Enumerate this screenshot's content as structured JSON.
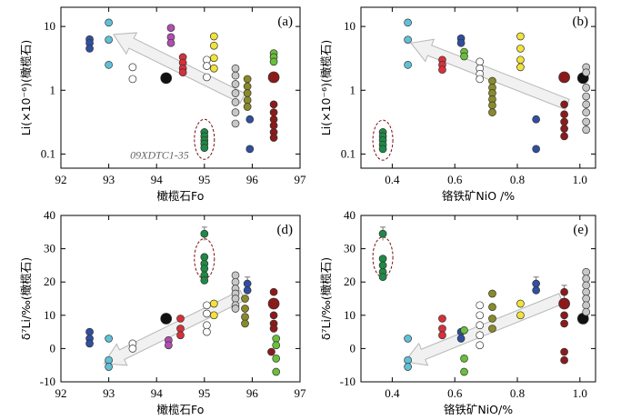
{
  "colors": {
    "navy": "#2f4fa0",
    "cyan": "#5fc0d8",
    "white": "#ffffff",
    "black": "#111111",
    "magenta": "#b04fb0",
    "red": "#d8303a",
    "green": "#1e8a45",
    "yellow": "#f2e23a",
    "gray": "#c8c8c8",
    "olive": "#8a8a2a",
    "darkred": "#8c1a1a",
    "lime": "#6abf3a"
  },
  "chart_data": [
    {
      "panel": "a",
      "type": "scatter",
      "label": "(a)",
      "xlabel": "橄榄石Fo",
      "ylabel": "Li(×10⁻⁶)(橄榄石)",
      "xlim": [
        92,
        97
      ],
      "ylim": [
        0.06,
        20
      ],
      "yscale": "log",
      "xticks": [
        "92",
        "93",
        "94",
        "95",
        "96",
        "97"
      ],
      "yticks": [
        "0.1",
        "1",
        "10"
      ],
      "annotation": "09XDTC1-35",
      "points": [
        {
          "x": 92.6,
          "y": 6.3,
          "c": "navy"
        },
        {
          "x": 92.6,
          "y": 5.5,
          "c": "navy"
        },
        {
          "x": 92.6,
          "y": 4.5,
          "c": "navy"
        },
        {
          "x": 93.0,
          "y": 11.5,
          "c": "cyan"
        },
        {
          "x": 93.0,
          "y": 6.2,
          "c": "cyan"
        },
        {
          "x": 93.0,
          "y": 2.5,
          "c": "cyan"
        },
        {
          "x": 93.5,
          "y": 2.3,
          "c": "white"
        },
        {
          "x": 93.5,
          "y": 1.5,
          "c": "white"
        },
        {
          "x": 94.2,
          "y": 1.55,
          "c": "black",
          "big": true
        },
        {
          "x": 94.3,
          "y": 9.5,
          "c": "magenta"
        },
        {
          "x": 94.3,
          "y": 6.8,
          "c": "magenta"
        },
        {
          "x": 94.3,
          "y": 5.5,
          "c": "magenta"
        },
        {
          "x": 94.55,
          "y": 3.3,
          "c": "red"
        },
        {
          "x": 94.55,
          "y": 2.7,
          "c": "red"
        },
        {
          "x": 94.55,
          "y": 2.2,
          "c": "red"
        },
        {
          "x": 94.55,
          "y": 1.9,
          "c": "red"
        },
        {
          "x": 95.0,
          "y": 0.22,
          "c": "green"
        },
        {
          "x": 95.0,
          "y": 0.19,
          "c": "green"
        },
        {
          "x": 95.0,
          "y": 0.165,
          "c": "green"
        },
        {
          "x": 95.0,
          "y": 0.145,
          "c": "green"
        },
        {
          "x": 95.0,
          "y": 0.125,
          "c": "green"
        },
        {
          "x": 95.05,
          "y": 3.0,
          "c": "white"
        },
        {
          "x": 95.05,
          "y": 2.4,
          "c": "white"
        },
        {
          "x": 95.05,
          "y": 1.6,
          "c": "white"
        },
        {
          "x": 95.2,
          "y": 7.0,
          "c": "yellow"
        },
        {
          "x": 95.2,
          "y": 5.0,
          "c": "yellow"
        },
        {
          "x": 95.2,
          "y": 3.2,
          "c": "yellow"
        },
        {
          "x": 95.2,
          "y": 2.2,
          "c": "yellow"
        },
        {
          "x": 95.65,
          "y": 2.2,
          "c": "gray"
        },
        {
          "x": 95.65,
          "y": 1.7,
          "c": "gray"
        },
        {
          "x": 95.65,
          "y": 1.25,
          "c": "gray"
        },
        {
          "x": 95.65,
          "y": 0.9,
          "c": "gray"
        },
        {
          "x": 95.65,
          "y": 0.65,
          "c": "gray"
        },
        {
          "x": 95.65,
          "y": 0.45,
          "c": "gray"
        },
        {
          "x": 95.65,
          "y": 0.3,
          "c": "gray"
        },
        {
          "x": 95.9,
          "y": 1.5,
          "c": "olive"
        },
        {
          "x": 95.9,
          "y": 1.15,
          "c": "olive"
        },
        {
          "x": 95.9,
          "y": 0.9,
          "c": "olive"
        },
        {
          "x": 95.9,
          "y": 0.7,
          "c": "olive"
        },
        {
          "x": 95.9,
          "y": 0.55,
          "c": "olive"
        },
        {
          "x": 95.95,
          "y": 0.35,
          "c": "navy"
        },
        {
          "x": 95.95,
          "y": 0.12,
          "c": "navy"
        },
        {
          "x": 96.45,
          "y": 3.8,
          "c": "lime"
        },
        {
          "x": 96.45,
          "y": 3.3,
          "c": "lime"
        },
        {
          "x": 96.45,
          "y": 2.8,
          "c": "lime"
        },
        {
          "x": 96.45,
          "y": 1.6,
          "c": "darkred",
          "big": true
        },
        {
          "x": 96.45,
          "y": 0.6,
          "c": "darkred"
        },
        {
          "x": 96.45,
          "y": 0.45,
          "c": "darkred"
        },
        {
          "x": 96.45,
          "y": 0.35,
          "c": "darkred"
        },
        {
          "x": 96.45,
          "y": 0.28,
          "c": "darkred"
        },
        {
          "x": 96.45,
          "y": 0.22,
          "c": "darkred"
        },
        {
          "x": 96.45,
          "y": 0.18,
          "c": "darkred"
        }
      ],
      "ellipse": {
        "x": 95.0,
        "y": 0.17
      },
      "arrow": {
        "from": [
          95.8,
          0.75
        ],
        "to": [
          93.1,
          7.5
        ]
      }
    },
    {
      "panel": "b",
      "type": "scatter",
      "label": "(b)",
      "xlabel": "铬铁矿NiO /%",
      "ylabel": "Li(×10⁻⁶)(橄榄石)",
      "xlim": [
        0.3,
        1.05
      ],
      "ylim": [
        0.06,
        20
      ],
      "yscale": "log",
      "xticks": [
        "0.4",
        "0.6",
        "0.8",
        "1.0"
      ],
      "yticks": [
        "0.1",
        "1",
        "10"
      ],
      "points": [
        {
          "x": 0.37,
          "y": 0.22,
          "c": "green"
        },
        {
          "x": 0.37,
          "y": 0.19,
          "c": "green"
        },
        {
          "x": 0.37,
          "y": 0.165,
          "c": "green"
        },
        {
          "x": 0.37,
          "y": 0.14,
          "c": "green"
        },
        {
          "x": 0.37,
          "y": 0.12,
          "c": "green"
        },
        {
          "x": 0.45,
          "y": 11.5,
          "c": "cyan"
        },
        {
          "x": 0.45,
          "y": 6.2,
          "c": "cyan"
        },
        {
          "x": 0.45,
          "y": 2.5,
          "c": "cyan"
        },
        {
          "x": 0.56,
          "y": 3.0,
          "c": "red"
        },
        {
          "x": 0.56,
          "y": 2.5,
          "c": "red"
        },
        {
          "x": 0.56,
          "y": 2.1,
          "c": "red"
        },
        {
          "x": 0.62,
          "y": 6.5,
          "c": "navy"
        },
        {
          "x": 0.62,
          "y": 5.5,
          "c": "navy"
        },
        {
          "x": 0.63,
          "y": 4.0,
          "c": "lime"
        },
        {
          "x": 0.63,
          "y": 3.4,
          "c": "lime"
        },
        {
          "x": 0.68,
          "y": 2.8,
          "c": "white"
        },
        {
          "x": 0.68,
          "y": 2.2,
          "c": "white"
        },
        {
          "x": 0.68,
          "y": 1.8,
          "c": "white"
        },
        {
          "x": 0.68,
          "y": 1.5,
          "c": "white"
        },
        {
          "x": 0.72,
          "y": 1.4,
          "c": "olive"
        },
        {
          "x": 0.72,
          "y": 1.1,
          "c": "olive"
        },
        {
          "x": 0.72,
          "y": 0.9,
          "c": "olive"
        },
        {
          "x": 0.72,
          "y": 0.72,
          "c": "olive"
        },
        {
          "x": 0.72,
          "y": 0.58,
          "c": "olive"
        },
        {
          "x": 0.72,
          "y": 0.45,
          "c": "olive"
        },
        {
          "x": 0.81,
          "y": 7.0,
          "c": "yellow"
        },
        {
          "x": 0.81,
          "y": 4.5,
          "c": "yellow"
        },
        {
          "x": 0.81,
          "y": 3.0,
          "c": "yellow"
        },
        {
          "x": 0.81,
          "y": 2.3,
          "c": "yellow"
        },
        {
          "x": 0.86,
          "y": 0.35,
          "c": "navy"
        },
        {
          "x": 0.86,
          "y": 0.12,
          "c": "navy"
        },
        {
          "x": 0.95,
          "y": 1.6,
          "c": "darkred",
          "big": true
        },
        {
          "x": 0.95,
          "y": 0.6,
          "c": "darkred"
        },
        {
          "x": 0.95,
          "y": 0.42,
          "c": "darkred"
        },
        {
          "x": 0.95,
          "y": 0.32,
          "c": "darkred"
        },
        {
          "x": 0.95,
          "y": 0.25,
          "c": "darkred"
        },
        {
          "x": 0.95,
          "y": 0.19,
          "c": "darkred"
        },
        {
          "x": 1.01,
          "y": 1.55,
          "c": "black",
          "big": true
        },
        {
          "x": 1.02,
          "y": 2.3,
          "c": "gray"
        },
        {
          "x": 1.02,
          "y": 1.9,
          "c": "gray"
        },
        {
          "x": 1.02,
          "y": 1.1,
          "c": "gray"
        },
        {
          "x": 1.02,
          "y": 0.8,
          "c": "gray"
        },
        {
          "x": 1.02,
          "y": 0.6,
          "c": "gray"
        },
        {
          "x": 1.02,
          "y": 0.45,
          "c": "gray"
        },
        {
          "x": 1.02,
          "y": 0.32,
          "c": "gray"
        },
        {
          "x": 1.02,
          "y": 0.24,
          "c": "gray"
        }
      ],
      "ellipse": {
        "x": 0.37,
        "y": 0.165
      },
      "arrow": {
        "from": [
          0.96,
          0.6
        ],
        "to": [
          0.46,
          5.5
        ]
      }
    },
    {
      "panel": "d",
      "type": "scatter",
      "label": "(d)",
      "xlabel": "橄榄石Fo",
      "ylabel": "δ⁷Li/‰(橄榄石)",
      "xlim": [
        92,
        97
      ],
      "ylim": [
        -10,
        40
      ],
      "yscale": "linear",
      "xticks": [
        "92",
        "93",
        "94",
        "95",
        "96",
        "97"
      ],
      "yticks": [
        "-10",
        "0",
        "10",
        "20",
        "30",
        "40"
      ],
      "points": [
        {
          "x": 92.6,
          "y": 5.0,
          "c": "navy"
        },
        {
          "x": 92.6,
          "y": 3.0,
          "c": "navy"
        },
        {
          "x": 92.6,
          "y": 1.5,
          "c": "navy"
        },
        {
          "x": 93.0,
          "y": 3.0,
          "c": "cyan"
        },
        {
          "x": 93.0,
          "y": -3.5,
          "c": "cyan"
        },
        {
          "x": 93.0,
          "y": -5.5,
          "c": "cyan"
        },
        {
          "x": 93.5,
          "y": 1.5,
          "c": "white"
        },
        {
          "x": 93.5,
          "y": 0.0,
          "c": "white"
        },
        {
          "x": 94.2,
          "y": 9.0,
          "c": "black",
          "big": true
        },
        {
          "x": 94.25,
          "y": 2.5,
          "c": "magenta"
        },
        {
          "x": 94.25,
          "y": 1.0,
          "c": "magenta"
        },
        {
          "x": 94.5,
          "y": 9.0,
          "c": "red"
        },
        {
          "x": 94.5,
          "y": 6.0,
          "c": "red"
        },
        {
          "x": 94.5,
          "y": 4.0,
          "c": "red"
        },
        {
          "x": 95.0,
          "y": 34.5,
          "c": "green",
          "err": 2
        },
        {
          "x": 95.0,
          "y": 27.5,
          "c": "green"
        },
        {
          "x": 95.0,
          "y": 25.5,
          "c": "green"
        },
        {
          "x": 95.0,
          "y": 24.0,
          "c": "green"
        },
        {
          "x": 95.0,
          "y": 22.0,
          "c": "green"
        },
        {
          "x": 95.0,
          "y": 20.5,
          "c": "green"
        },
        {
          "x": 95.05,
          "y": 13.0,
          "c": "white"
        },
        {
          "x": 95.05,
          "y": 10.5,
          "c": "white"
        },
        {
          "x": 95.05,
          "y": 7.0,
          "c": "white"
        },
        {
          "x": 95.05,
          "y": 5.0,
          "c": "white"
        },
        {
          "x": 95.2,
          "y": 13.5,
          "c": "yellow"
        },
        {
          "x": 95.2,
          "y": 10.0,
          "c": "yellow"
        },
        {
          "x": 95.65,
          "y": 22.0,
          "c": "gray"
        },
        {
          "x": 95.65,
          "y": 20.0,
          "c": "gray"
        },
        {
          "x": 95.65,
          "y": 18.0,
          "c": "gray"
        },
        {
          "x": 95.65,
          "y": 16.5,
          "c": "gray"
        },
        {
          "x": 95.65,
          "y": 15.0,
          "c": "gray"
        },
        {
          "x": 95.65,
          "y": 13.0,
          "c": "gray"
        },
        {
          "x": 95.65,
          "y": 12.0,
          "c": "gray"
        },
        {
          "x": 95.9,
          "y": 19.5,
          "c": "navy",
          "err": 2
        },
        {
          "x": 95.9,
          "y": 17.5,
          "c": "navy"
        },
        {
          "x": 95.85,
          "y": 15.0,
          "c": "olive"
        },
        {
          "x": 95.85,
          "y": 12.0,
          "c": "olive"
        },
        {
          "x": 95.85,
          "y": 9.5,
          "c": "olive"
        },
        {
          "x": 95.85,
          "y": 7.5,
          "c": "olive"
        },
        {
          "x": 96.45,
          "y": 17.0,
          "c": "darkred"
        },
        {
          "x": 96.45,
          "y": 13.5,
          "c": "darkred",
          "big": true
        },
        {
          "x": 96.45,
          "y": 10.0,
          "c": "darkred"
        },
        {
          "x": 96.45,
          "y": 7.5,
          "c": "darkred"
        },
        {
          "x": 96.45,
          "y": 6.0,
          "c": "darkred"
        },
        {
          "x": 96.5,
          "y": 3.0,
          "c": "lime"
        },
        {
          "x": 96.5,
          "y": 1.0,
          "c": "lime"
        },
        {
          "x": 96.5,
          "y": -3.0,
          "c": "lime"
        },
        {
          "x": 96.5,
          "y": -7.0,
          "c": "lime"
        },
        {
          "x": 96.4,
          "y": -1.0,
          "c": "darkred"
        }
      ],
      "ellipse": {
        "x": 95.0,
        "y": 27.0
      },
      "arrow": {
        "from": [
          95.8,
          16.0
        ],
        "to": [
          92.9,
          -4.5
        ]
      }
    },
    {
      "panel": "e",
      "type": "scatter",
      "label": "(e)",
      "xlabel": "铬铁矿NiO/%",
      "ylabel": "δ⁷Li/‰(橄榄石)",
      "xlim": [
        0.3,
        1.05
      ],
      "ylim": [
        -10,
        40
      ],
      "yscale": "linear",
      "xticks": [
        "0.4",
        "0.6",
        "0.8",
        "1.0"
      ],
      "yticks": [
        "-10",
        "0",
        "10",
        "20",
        "30",
        "40"
      ],
      "points": [
        {
          "x": 0.37,
          "y": 34.5,
          "c": "green",
          "err": 2
        },
        {
          "x": 0.37,
          "y": 27.0,
          "c": "green"
        },
        {
          "x": 0.37,
          "y": 25.0,
          "c": "green"
        },
        {
          "x": 0.37,
          "y": 23.0,
          "c": "green"
        },
        {
          "x": 0.37,
          "y": 21.5,
          "c": "green"
        },
        {
          "x": 0.45,
          "y": 3.0,
          "c": "cyan"
        },
        {
          "x": 0.45,
          "y": -3.5,
          "c": "cyan"
        },
        {
          "x": 0.45,
          "y": -5.5,
          "c": "cyan"
        },
        {
          "x": 0.56,
          "y": 9.0,
          "c": "red"
        },
        {
          "x": 0.56,
          "y": 6.0,
          "c": "red"
        },
        {
          "x": 0.56,
          "y": 4.0,
          "c": "red"
        },
        {
          "x": 0.62,
          "y": 5.0,
          "c": "navy"
        },
        {
          "x": 0.62,
          "y": 3.0,
          "c": "navy"
        },
        {
          "x": 0.63,
          "y": 5.5,
          "c": "lime"
        },
        {
          "x": 0.63,
          "y": -3.0,
          "c": "lime"
        },
        {
          "x": 0.63,
          "y": -7.0,
          "c": "lime"
        },
        {
          "x": 0.68,
          "y": 13.0,
          "c": "white"
        },
        {
          "x": 0.68,
          "y": 10.0,
          "c": "white"
        },
        {
          "x": 0.68,
          "y": 7.0,
          "c": "white"
        },
        {
          "x": 0.68,
          "y": 4.0,
          "c": "white"
        },
        {
          "x": 0.68,
          "y": 1.0,
          "c": "white"
        },
        {
          "x": 0.72,
          "y": 16.5,
          "c": "olive"
        },
        {
          "x": 0.72,
          "y": 12.5,
          "c": "olive"
        },
        {
          "x": 0.72,
          "y": 9.0,
          "c": "olive"
        },
        {
          "x": 0.72,
          "y": 6.0,
          "c": "olive"
        },
        {
          "x": 0.81,
          "y": 13.5,
          "c": "yellow"
        },
        {
          "x": 0.81,
          "y": 10.0,
          "c": "yellow"
        },
        {
          "x": 0.86,
          "y": 19.5,
          "c": "navy",
          "err": 2
        },
        {
          "x": 0.86,
          "y": 17.5,
          "c": "navy"
        },
        {
          "x": 0.95,
          "y": 17.0,
          "c": "darkred",
          "err": 2
        },
        {
          "x": 0.95,
          "y": 13.5,
          "c": "darkred",
          "big": true
        },
        {
          "x": 0.95,
          "y": 10.0,
          "c": "darkred"
        },
        {
          "x": 0.95,
          "y": 7.5,
          "c": "darkred"
        },
        {
          "x": 0.95,
          "y": -1.0,
          "c": "darkred"
        },
        {
          "x": 0.95,
          "y": -3.5,
          "c": "darkred"
        },
        {
          "x": 1.01,
          "y": 9.0,
          "c": "black",
          "big": true
        },
        {
          "x": 1.02,
          "y": 23.0,
          "c": "gray"
        },
        {
          "x": 1.02,
          "y": 21.0,
          "c": "gray"
        },
        {
          "x": 1.02,
          "y": 19.0,
          "c": "gray"
        },
        {
          "x": 1.02,
          "y": 17.0,
          "c": "gray"
        },
        {
          "x": 1.02,
          "y": 15.0,
          "c": "gray"
        },
        {
          "x": 1.02,
          "y": 13.0,
          "c": "gray"
        },
        {
          "x": 1.02,
          "y": 11.0,
          "c": "gray"
        }
      ],
      "ellipse": {
        "x": 0.37,
        "y": 27.5
      },
      "arrow": {
        "from": [
          0.94,
          15.0
        ],
        "to": [
          0.44,
          -4.0
        ]
      }
    }
  ]
}
